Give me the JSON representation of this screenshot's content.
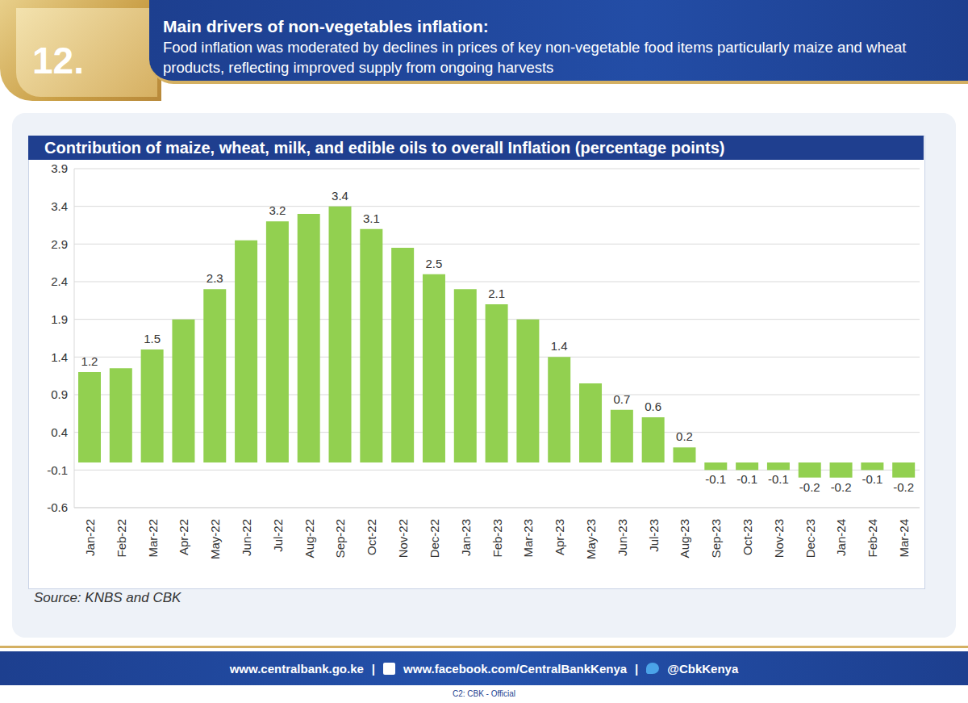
{
  "header": {
    "number": "12.",
    "title": "Main drivers of non-vegetables inflation:",
    "subtitle": "Food inflation was moderated by declines in prices of key non-vegetable food items particularly maize and wheat products, reflecting improved supply from ongoing harvests"
  },
  "chart_data": {
    "type": "bar",
    "title": "Contribution of maize, wheat, milk, and edible oils to overall Inflation (percentage points)",
    "categories": [
      "Jan-22",
      "Feb-22",
      "Mar-22",
      "Apr-22",
      "May-22",
      "Jun-22",
      "Jul-22",
      "Aug-22",
      "Sep-22",
      "Oct-22",
      "Nov-22",
      "Dec-22",
      "Jan-23",
      "Feb-23",
      "Mar-23",
      "Apr-23",
      "May-23",
      "Jun-23",
      "Jul-23",
      "Aug-23",
      "Sep-23",
      "Oct-23",
      "Nov-23",
      "Dec-23",
      "Jan-24",
      "Feb-24",
      "Mar-24"
    ],
    "values": [
      1.2,
      1.25,
      1.5,
      1.9,
      2.3,
      2.95,
      3.2,
      3.3,
      3.4,
      3.1,
      2.85,
      2.5,
      2.3,
      2.1,
      1.9,
      1.4,
      1.05,
      0.7,
      0.6,
      0.2,
      -0.1,
      -0.1,
      -0.1,
      -0.2,
      -0.2,
      -0.1,
      -0.2
    ],
    "value_labels": [
      "1.2",
      null,
      "1.5",
      null,
      "2.3",
      null,
      "3.2",
      null,
      "3.4",
      "3.1",
      null,
      "2.5",
      null,
      "2.1",
      null,
      "1.4",
      null,
      "0.7",
      "0.6",
      "0.2",
      "-0.1",
      "-0.1",
      "-0.1",
      "-0.2",
      "-0.2",
      "-0.1",
      "-0.2"
    ],
    "data_labels": true,
    "color": "#92d050",
    "ylim": [
      -0.6,
      3.9
    ],
    "yticks": [
      -0.6,
      -0.1,
      0.4,
      0.9,
      1.4,
      1.9,
      2.4,
      2.9,
      3.4,
      3.9
    ],
    "grid": true
  },
  "source": "Source: KNBS and CBK",
  "footer": {
    "links": [
      "www.centralbank.go.ke",
      "www.facebook.com/CentralBankKenya",
      "@CbkKenya"
    ],
    "separator": "|",
    "classification": "C2: CBK - Official"
  }
}
